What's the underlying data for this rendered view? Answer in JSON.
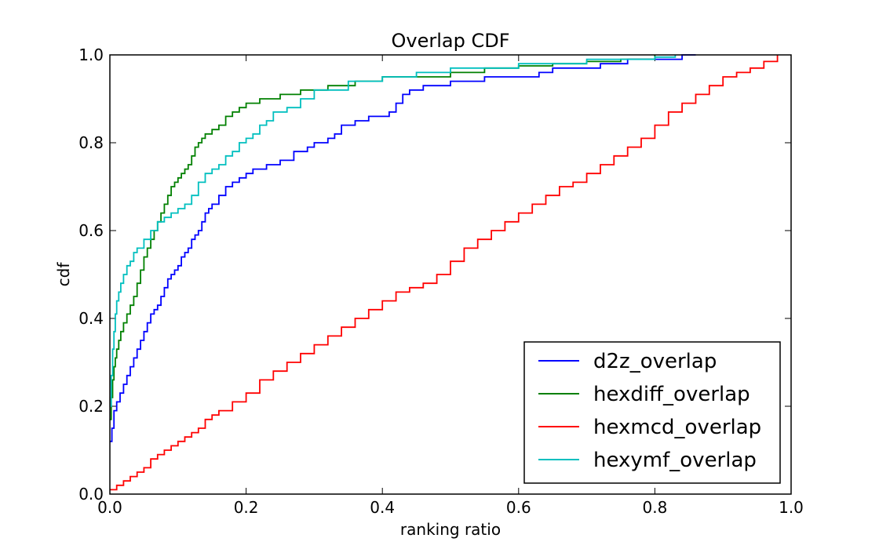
{
  "chart_data": {
    "type": "line",
    "title": "Overlap CDF",
    "xlabel": "ranking ratio",
    "ylabel": "cdf",
    "xlim": [
      0.0,
      1.0
    ],
    "ylim": [
      0.0,
      1.0
    ],
    "xticks": [
      "0.0",
      "0.2",
      "0.4",
      "0.6",
      "0.8",
      "1.0"
    ],
    "yticks": [
      "0.0",
      "0.2",
      "0.4",
      "0.6",
      "0.8",
      "1.0"
    ],
    "grid": false,
    "legend_position": "lower-right",
    "series": [
      {
        "name": "d2z_overlap",
        "color": "#0000ff",
        "x": [
          0.0,
          0.003,
          0.006,
          0.01,
          0.015,
          0.02,
          0.025,
          0.03,
          0.035,
          0.04,
          0.045,
          0.05,
          0.055,
          0.06,
          0.065,
          0.07,
          0.075,
          0.08,
          0.085,
          0.09,
          0.095,
          0.1,
          0.105,
          0.11,
          0.115,
          0.12,
          0.125,
          0.13,
          0.135,
          0.14,
          0.145,
          0.15,
          0.16,
          0.17,
          0.18,
          0.19,
          0.2,
          0.21,
          0.22,
          0.23,
          0.25,
          0.27,
          0.29,
          0.3,
          0.32,
          0.33,
          0.34,
          0.36,
          0.38,
          0.41,
          0.42,
          0.43,
          0.44,
          0.46,
          0.5,
          0.52,
          0.55,
          0.6,
          0.63,
          0.65,
          0.68,
          0.72,
          0.74,
          0.76,
          0.8,
          0.84,
          0.86
        ],
        "y": [
          0.12,
          0.15,
          0.19,
          0.21,
          0.23,
          0.25,
          0.27,
          0.29,
          0.31,
          0.33,
          0.35,
          0.37,
          0.39,
          0.41,
          0.42,
          0.43,
          0.45,
          0.47,
          0.49,
          0.5,
          0.51,
          0.52,
          0.54,
          0.55,
          0.56,
          0.58,
          0.59,
          0.6,
          0.62,
          0.64,
          0.65,
          0.66,
          0.68,
          0.7,
          0.71,
          0.72,
          0.73,
          0.74,
          0.74,
          0.75,
          0.76,
          0.78,
          0.79,
          0.8,
          0.81,
          0.82,
          0.84,
          0.85,
          0.86,
          0.87,
          0.89,
          0.91,
          0.92,
          0.93,
          0.94,
          0.94,
          0.95,
          0.95,
          0.96,
          0.97,
          0.97,
          0.98,
          0.98,
          0.99,
          0.99,
          1.0,
          1.0
        ]
      },
      {
        "name": "hexdiff_overlap",
        "color": "#008000",
        "x": [
          0.0,
          0.002,
          0.004,
          0.006,
          0.008,
          0.01,
          0.013,
          0.016,
          0.02,
          0.025,
          0.03,
          0.035,
          0.04,
          0.045,
          0.05,
          0.055,
          0.06,
          0.065,
          0.07,
          0.075,
          0.08,
          0.085,
          0.09,
          0.095,
          0.1,
          0.105,
          0.11,
          0.115,
          0.12,
          0.125,
          0.13,
          0.135,
          0.14,
          0.15,
          0.16,
          0.17,
          0.18,
          0.19,
          0.2,
          0.22,
          0.25,
          0.28,
          0.32,
          0.36,
          0.4,
          0.5,
          0.55,
          0.6,
          0.65,
          0.7,
          0.75,
          0.8
        ],
        "y": [
          0.17,
          0.22,
          0.26,
          0.29,
          0.31,
          0.33,
          0.35,
          0.37,
          0.39,
          0.41,
          0.43,
          0.45,
          0.48,
          0.51,
          0.54,
          0.56,
          0.58,
          0.6,
          0.62,
          0.64,
          0.66,
          0.68,
          0.7,
          0.71,
          0.72,
          0.73,
          0.74,
          0.75,
          0.77,
          0.79,
          0.8,
          0.81,
          0.82,
          0.83,
          0.84,
          0.86,
          0.87,
          0.88,
          0.89,
          0.9,
          0.91,
          0.92,
          0.93,
          0.94,
          0.95,
          0.96,
          0.97,
          0.975,
          0.98,
          0.985,
          0.99,
          1.0
        ]
      },
      {
        "name": "hexmcd_overlap",
        "color": "#ff0000",
        "x": [
          0.0,
          0.01,
          0.02,
          0.03,
          0.04,
          0.05,
          0.06,
          0.07,
          0.08,
          0.09,
          0.1,
          0.11,
          0.12,
          0.13,
          0.14,
          0.15,
          0.16,
          0.18,
          0.2,
          0.22,
          0.24,
          0.26,
          0.28,
          0.3,
          0.32,
          0.34,
          0.36,
          0.38,
          0.4,
          0.42,
          0.44,
          0.46,
          0.48,
          0.5,
          0.52,
          0.54,
          0.56,
          0.58,
          0.6,
          0.62,
          0.64,
          0.66,
          0.68,
          0.7,
          0.72,
          0.74,
          0.76,
          0.78,
          0.8,
          0.82,
          0.84,
          0.86,
          0.88,
          0.9,
          0.92,
          0.94,
          0.96,
          0.98
        ],
        "y": [
          0.01,
          0.02,
          0.03,
          0.04,
          0.05,
          0.06,
          0.08,
          0.09,
          0.1,
          0.11,
          0.12,
          0.13,
          0.14,
          0.15,
          0.17,
          0.18,
          0.19,
          0.21,
          0.23,
          0.26,
          0.28,
          0.3,
          0.32,
          0.34,
          0.36,
          0.38,
          0.4,
          0.42,
          0.44,
          0.46,
          0.47,
          0.48,
          0.5,
          0.53,
          0.56,
          0.58,
          0.6,
          0.62,
          0.64,
          0.66,
          0.68,
          0.7,
          0.71,
          0.73,
          0.75,
          0.77,
          0.79,
          0.81,
          0.84,
          0.87,
          0.89,
          0.91,
          0.93,
          0.95,
          0.96,
          0.97,
          0.985,
          1.0
        ]
      },
      {
        "name": "hexymf_overlap",
        "color": "#00bfbf",
        "x": [
          0.0,
          0.002,
          0.004,
          0.006,
          0.008,
          0.01,
          0.013,
          0.016,
          0.02,
          0.025,
          0.03,
          0.035,
          0.04,
          0.05,
          0.06,
          0.07,
          0.08,
          0.09,
          0.1,
          0.11,
          0.12,
          0.13,
          0.14,
          0.15,
          0.16,
          0.17,
          0.18,
          0.19,
          0.2,
          0.21,
          0.22,
          0.23,
          0.24,
          0.26,
          0.28,
          0.3,
          0.35,
          0.4,
          0.45,
          0.5,
          0.55,
          0.6,
          0.7,
          0.8,
          0.83
        ],
        "y": [
          0.2,
          0.27,
          0.33,
          0.37,
          0.41,
          0.44,
          0.46,
          0.48,
          0.5,
          0.52,
          0.53,
          0.55,
          0.56,
          0.58,
          0.6,
          0.62,
          0.63,
          0.64,
          0.65,
          0.66,
          0.68,
          0.71,
          0.73,
          0.74,
          0.75,
          0.77,
          0.78,
          0.8,
          0.81,
          0.82,
          0.84,
          0.85,
          0.87,
          0.88,
          0.9,
          0.92,
          0.94,
          0.95,
          0.96,
          0.97,
          0.97,
          0.98,
          0.99,
          0.995,
          1.0
        ]
      }
    ]
  }
}
